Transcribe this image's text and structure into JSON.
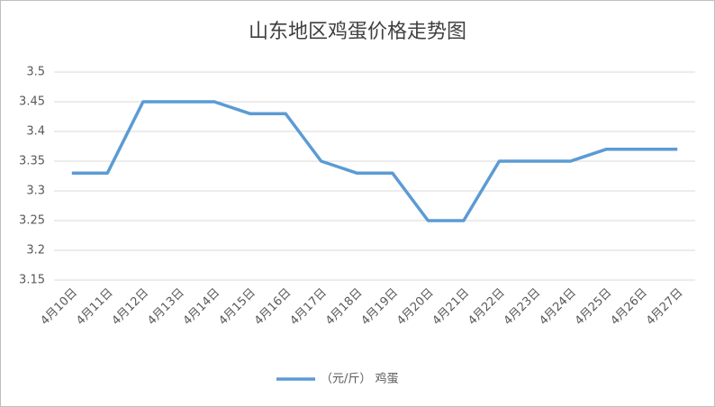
{
  "chart_data": {
    "type": "line",
    "title": "山东地区鸡蛋价格走势图",
    "categories": [
      "4月10日",
      "4月11日",
      "4月12日",
      "4月13日",
      "4月14日",
      "4月15日",
      "4月16日",
      "4月17日",
      "4月18日",
      "4月19日",
      "4月20日",
      "4月21日",
      "4月22日",
      "4月23日",
      "4月24日",
      "4月25日",
      "4月26日",
      "4月27日"
    ],
    "series": [
      {
        "name": "（元/斤） 鸡蛋",
        "color": "#5b9bd5",
        "values": [
          3.33,
          3.33,
          3.45,
          3.45,
          3.45,
          3.43,
          3.43,
          3.35,
          3.33,
          3.33,
          3.25,
          3.25,
          3.35,
          3.35,
          3.35,
          3.37,
          3.37,
          3.37
        ]
      }
    ],
    "ylim": [
      3.15,
      3.5
    ],
    "yticks": [
      3.15,
      3.2,
      3.25,
      3.3,
      3.35,
      3.4,
      3.45,
      3.5
    ],
    "grid": true,
    "legend": "bottom"
  }
}
